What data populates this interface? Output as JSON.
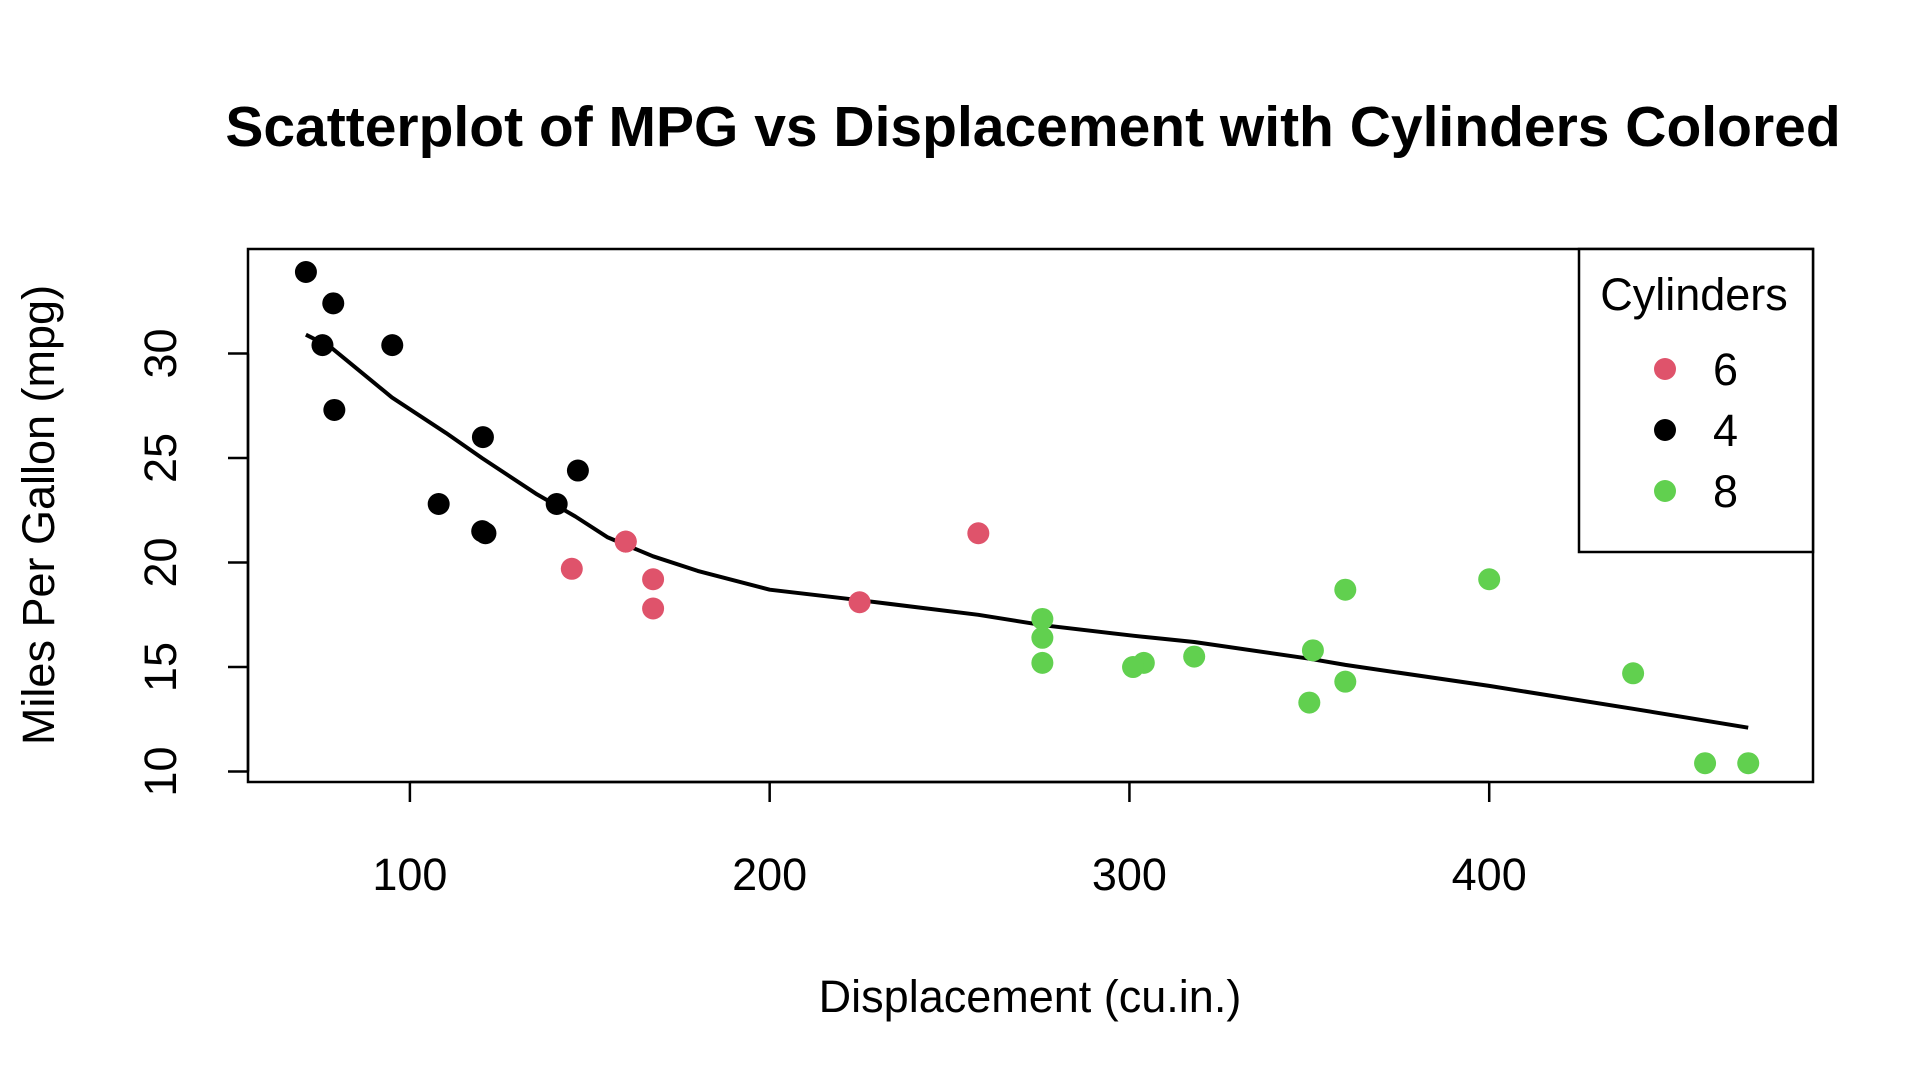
{
  "chart_data": {
    "type": "scatter",
    "title": "Scatterplot of MPG vs Displacement with Cylinders Colored",
    "xlabel": "Displacement (cu.in.)",
    "ylabel": "Miles Per Gallon (mpg)",
    "xlim": [
      55,
      490
    ],
    "ylim": [
      9.5,
      35
    ],
    "x_ticks": [
      100,
      200,
      300,
      400
    ],
    "y_ticks": [
      10,
      15,
      20,
      25,
      30
    ],
    "grid": false,
    "legend": {
      "title": "Cylinders",
      "position": "top-right",
      "entries": [
        {
          "label": "6",
          "color": "#df536b"
        },
        {
          "label": "4",
          "color": "#000000"
        },
        {
          "label": "8",
          "color": "#61d04f"
        }
      ]
    },
    "series": [
      {
        "label": "6",
        "color": "#df536b",
        "points": [
          {
            "x": 160,
            "y": 21.0
          },
          {
            "x": 160,
            "y": 21.0
          },
          {
            "x": 258,
            "y": 21.4
          },
          {
            "x": 225,
            "y": 18.1
          },
          {
            "x": 167.6,
            "y": 19.2
          },
          {
            "x": 167.6,
            "y": 17.8
          },
          {
            "x": 145,
            "y": 19.7
          }
        ]
      },
      {
        "label": "4",
        "color": "#000000",
        "points": [
          {
            "x": 108,
            "y": 22.8
          },
          {
            "x": 146.7,
            "y": 24.4
          },
          {
            "x": 140.8,
            "y": 22.8
          },
          {
            "x": 78.7,
            "y": 32.4
          },
          {
            "x": 75.7,
            "y": 30.4
          },
          {
            "x": 71.1,
            "y": 33.9
          },
          {
            "x": 120.1,
            "y": 21.5
          },
          {
            "x": 79,
            "y": 27.3
          },
          {
            "x": 120.3,
            "y": 26.0
          },
          {
            "x": 95.1,
            "y": 30.4
          },
          {
            "x": 121,
            "y": 21.4
          }
        ]
      },
      {
        "label": "8",
        "color": "#61d04f",
        "points": [
          {
            "x": 360,
            "y": 18.7
          },
          {
            "x": 360,
            "y": 14.3
          },
          {
            "x": 275.8,
            "y": 16.4
          },
          {
            "x": 275.8,
            "y": 17.3
          },
          {
            "x": 275.8,
            "y": 15.2
          },
          {
            "x": 472,
            "y": 10.4
          },
          {
            "x": 460,
            "y": 10.4
          },
          {
            "x": 440,
            "y": 14.7
          },
          {
            "x": 318,
            "y": 15.5
          },
          {
            "x": 304,
            "y": 15.2
          },
          {
            "x": 350,
            "y": 13.3
          },
          {
            "x": 400,
            "y": 19.2
          },
          {
            "x": 351,
            "y": 15.8
          },
          {
            "x": 301,
            "y": 15.0
          }
        ]
      }
    ],
    "trend_line": {
      "label": "",
      "color": "#000000",
      "points": [
        {
          "x": 71.1,
          "y": 30.9
        },
        {
          "x": 78,
          "y": 30.3
        },
        {
          "x": 95,
          "y": 27.9
        },
        {
          "x": 110,
          "y": 26.2
        },
        {
          "x": 120,
          "y": 25.0
        },
        {
          "x": 135,
          "y": 23.3
        },
        {
          "x": 146,
          "y": 22.2
        },
        {
          "x": 155,
          "y": 21.2
        },
        {
          "x": 167.6,
          "y": 20.3
        },
        {
          "x": 180,
          "y": 19.6
        },
        {
          "x": 200,
          "y": 18.7
        },
        {
          "x": 225,
          "y": 18.2
        },
        {
          "x": 258,
          "y": 17.5
        },
        {
          "x": 276,
          "y": 17.0
        },
        {
          "x": 301,
          "y": 16.5
        },
        {
          "x": 318,
          "y": 16.2
        },
        {
          "x": 350,
          "y": 15.4
        },
        {
          "x": 360,
          "y": 15.1
        },
        {
          "x": 400,
          "y": 14.1
        },
        {
          "x": 440,
          "y": 13.0
        },
        {
          "x": 472,
          "y": 12.1
        }
      ]
    }
  }
}
